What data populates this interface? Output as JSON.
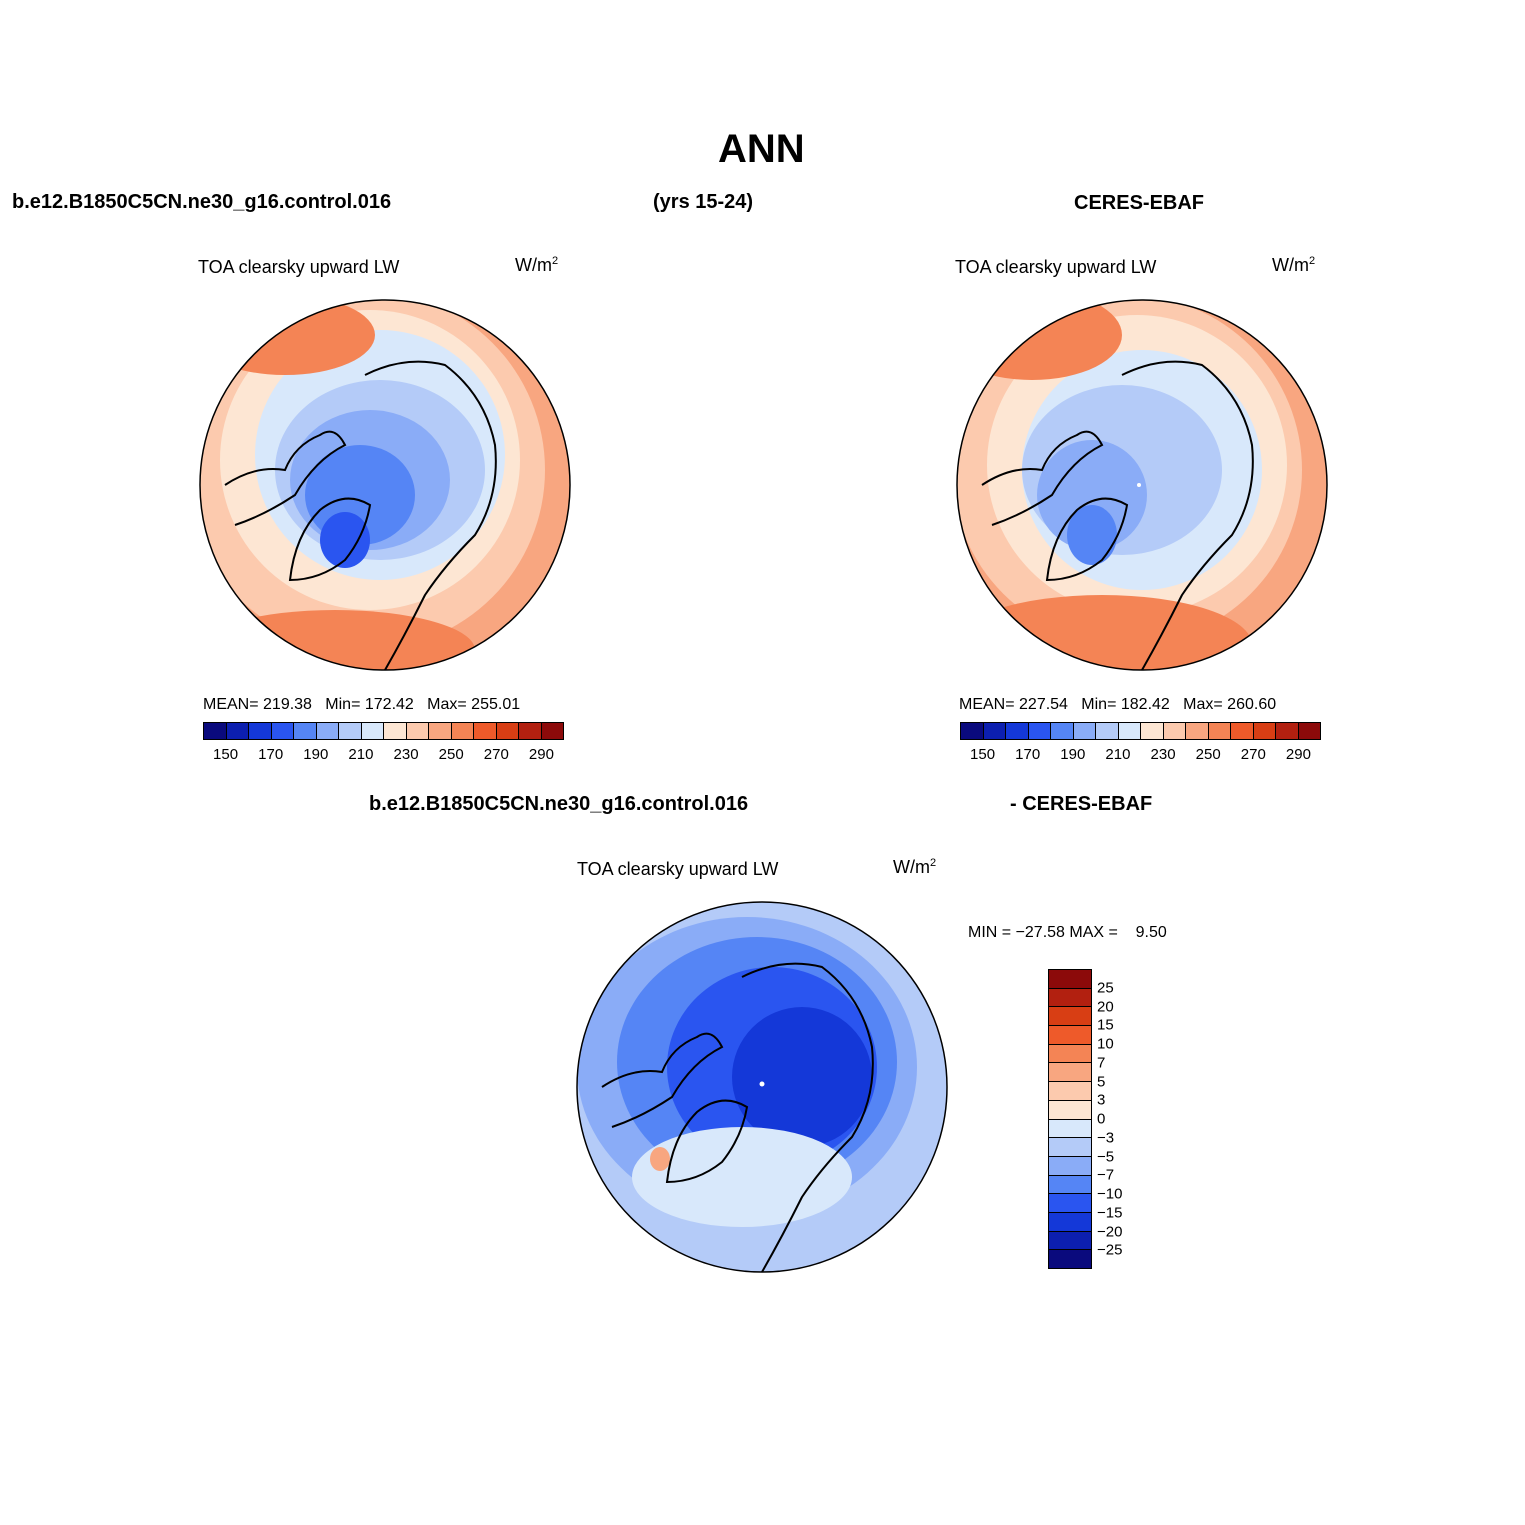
{
  "title": "ANN",
  "case_name": "b.e12.B1850C5CN.ne30_g16.control.016",
  "years": "(yrs 15-24)",
  "obs_name": "CERES-EBAF",
  "diff_case_name": "b.e12.B1850C5CN.ne30_g16.control.016",
  "diff_obs_name": "- CERES-EBAF",
  "panels": [
    {
      "var_label": "TOA clearsky upward LW",
      "unit": "W/m",
      "unit_sup": "2",
      "mean": "MEAN= 219.38",
      "min": "Min= 172.42",
      "max": "Max= 255.01"
    },
    {
      "var_label": "TOA clearsky upward LW",
      "unit": "W/m",
      "unit_sup": "2",
      "mean": "MEAN= 227.54",
      "min": "Min= 182.42",
      "max": "Max= 260.60"
    }
  ],
  "diff_panel": {
    "var_label": "TOA clearsky upward LW",
    "unit": "W/m",
    "unit_sup": "2",
    "minmax": "MIN = −27.58 MAX =    9.50"
  },
  "colorbar": {
    "colors": [
      "#0a0a7d",
      "#0c1fb0",
      "#1438d8",
      "#2a55f0",
      "#5585f5",
      "#8aacf7",
      "#b4cbf8",
      "#d8e8fb",
      "#fde6d3",
      "#fccaae",
      "#f8a680",
      "#f48455",
      "#ee5a2a",
      "#d83e14",
      "#b22010",
      "#8c0a0a"
    ],
    "labels": [
      "150",
      "170",
      "190",
      "210",
      "230",
      "250",
      "270",
      "290"
    ]
  },
  "diff_colorbar": {
    "colors": [
      "#8c0a0a",
      "#b22010",
      "#d83e14",
      "#ee5a2a",
      "#f48455",
      "#f8a680",
      "#fccaae",
      "#fde6d3",
      "#d8e8fb",
      "#b4cbf8",
      "#8aacf7",
      "#5585f5",
      "#2a55f0",
      "#1438d8",
      "#0c1fb0",
      "#0a0a7d"
    ],
    "labels": [
      "25",
      "20",
      "15",
      "10",
      "7",
      "5",
      "3",
      "0",
      "−3",
      "−5",
      "−7",
      "−10",
      "−15",
      "−20",
      "−25"
    ]
  }
}
